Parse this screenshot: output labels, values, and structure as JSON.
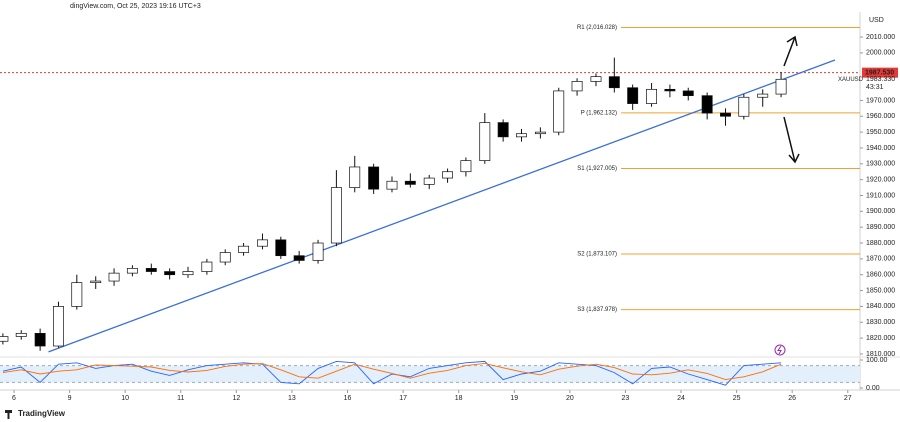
{
  "chart_data": {
    "type": "candlestick",
    "header": "dingView.com, Oct 25, 2023 19:16 UTC+3",
    "currency": "USD",
    "symbol": "XAUUSD",
    "countdown": "43:31",
    "brand": "TradingView",
    "up_color": "#ffffff",
    "down_color": "#000000",
    "x": [
      -0.2,
      0.13,
      0.47,
      0.8,
      1.13,
      1.47,
      1.8,
      2.13,
      2.47,
      2.8,
      3.13,
      3.47,
      3.8,
      4.13,
      4.47,
      4.8,
      5.13,
      5.47,
      5.8,
      6.13,
      6.47,
      6.8,
      7.13,
      7.47,
      7.8,
      8.13,
      8.47,
      8.8,
      9.13,
      9.47,
      9.8,
      10.13,
      10.47,
      10.8,
      11.13,
      11.47,
      11.8,
      12.13,
      12.47,
      12.8,
      13.13,
      13.47,
      13.8
    ],
    "open": [
      1818,
      1821,
      1823,
      1815,
      1840,
      1855,
      1856,
      1861,
      1864,
      1862,
      1860,
      1862,
      1868,
      1874,
      1878,
      1882,
      1872,
      1869,
      1880,
      1915,
      1928,
      1914,
      1919,
      1917,
      1921,
      1925,
      1932,
      1956,
      1947,
      1949,
      1950,
      1976,
      1982,
      1985,
      1978,
      1968,
      1977,
      1976,
      1973,
      1962,
      1960,
      1972,
      1974
    ],
    "high": [
      1823,
      1825,
      1826,
      1843,
      1860,
      1859,
      1864,
      1866,
      1867,
      1864,
      1865,
      1870,
      1876,
      1880,
      1886,
      1884,
      1875,
      1882,
      1926,
      1935,
      1930,
      1922,
      1924,
      1923,
      1927,
      1934,
      1962,
      1958,
      1952,
      1953,
      1978,
      1984,
      1987,
      1997,
      1980,
      1981,
      1980,
      1978,
      1975,
      1965,
      1974,
      1977,
      1988
    ],
    "low": [
      1816,
      1819,
      1812,
      1814,
      1838,
      1851,
      1853,
      1859,
      1860,
      1857,
      1858,
      1860,
      1866,
      1872,
      1876,
      1870,
      1867,
      1867,
      1878,
      1912,
      1911,
      1912,
      1915,
      1914,
      1918,
      1922,
      1930,
      1944,
      1944,
      1946,
      1948,
      1973,
      1979,
      1975,
      1964,
      1966,
      1972,
      1970,
      1958,
      1954,
      1958,
      1966,
      1972
    ],
    "close": [
      1821,
      1823,
      1815,
      1840,
      1855,
      1856,
      1861,
      1864,
      1862,
      1860,
      1862,
      1868,
      1874,
      1878,
      1882,
      1872,
      1869,
      1880,
      1915,
      1928,
      1914,
      1919,
      1917,
      1921,
      1925,
      1932,
      1956,
      1947,
      1949,
      1950,
      1976,
      1982,
      1985,
      1978,
      1968,
      1977,
      1976,
      1973,
      1962,
      1960,
      1972,
      1974,
      1983.33
    ],
    "xlim": [
      -0.252,
      15.22
    ],
    "xticks": [
      {
        "value": 0,
        "label": "6"
      },
      {
        "value": 1,
        "label": "9"
      },
      {
        "value": 2,
        "label": "10"
      },
      {
        "value": 3,
        "label": "11"
      },
      {
        "value": 4,
        "label": "12"
      },
      {
        "value": 5,
        "label": "13"
      },
      {
        "value": 6,
        "label": "16"
      },
      {
        "value": 7,
        "label": "17"
      },
      {
        "value": 8,
        "label": "18"
      },
      {
        "value": 9,
        "label": "19"
      },
      {
        "value": 10,
        "label": "20"
      },
      {
        "value": 11,
        "label": "23"
      },
      {
        "value": 12,
        "label": "24"
      },
      {
        "value": 13,
        "label": "25"
      },
      {
        "value": 14,
        "label": "26"
      },
      {
        "value": 15,
        "label": "27"
      }
    ],
    "ylim": [
      1808.7,
      2025.8
    ],
    "yticks": [
      {
        "value": 2010,
        "label": "2010.000"
      },
      {
        "value": 2000,
        "label": "2000.000"
      },
      {
        "value": 1970,
        "label": "1970.000"
      },
      {
        "value": 1960,
        "label": "1960.000"
      },
      {
        "value": 1950,
        "label": "1950.000"
      },
      {
        "value": 1940,
        "label": "1940.000"
      },
      {
        "value": 1930,
        "label": "1930.000"
      },
      {
        "value": 1920,
        "label": "1920.000"
      },
      {
        "value": 1910,
        "label": "1910.000"
      },
      {
        "value": 1900,
        "label": "1900.000"
      },
      {
        "value": 1890,
        "label": "1890.000"
      },
      {
        "value": 1880,
        "label": "1880.000"
      },
      {
        "value": 1870,
        "label": "1870.000"
      },
      {
        "value": 1860,
        "label": "1860.000"
      },
      {
        "value": 1850,
        "label": "1850.000"
      },
      {
        "value": 1840,
        "label": "1840.000"
      },
      {
        "value": 1830,
        "label": "1830.000"
      },
      {
        "value": 1820,
        "label": "1820.000"
      },
      {
        "value": 1810,
        "label": "1810.000"
      }
    ],
    "grid": false,
    "level_color": "#f0a030",
    "levels": [
      {
        "label": "R1 (2,016.028)",
        "value": 2016.028
      },
      {
        "label": "P (1,962.132)",
        "value": 1962.132
      },
      {
        "label": "S1 (1,927.005)",
        "value": 1927.005
      },
      {
        "label": "S2 (1,873.107)",
        "value": 1873.107
      },
      {
        "label": "S3 (1,837.978)",
        "value": 1837.978
      }
    ],
    "alert_line": {
      "value": 1987.53,
      "label": "1987.530",
      "color": "#e53935"
    },
    "last_price_label": "1983.330",
    "trendline": {
      "x": [
        0.62,
        14.77
      ],
      "y": [
        1811.3,
        1995.5
      ],
      "color": "#3a6fd8"
    },
    "oscillator": {
      "ylim": [
        0,
        100
      ],
      "yticks": [
        {
          "value": 100,
          "label": "100.00"
        },
        {
          "value": 0,
          "label": "0.00"
        }
      ],
      "band": [
        20,
        80
      ],
      "series": [
        {
          "color": "#2962ff",
          "values": [
            60,
            75,
            20,
            85,
            90,
            70,
            80,
            85,
            60,
            45,
            65,
            80,
            85,
            90,
            85,
            20,
            15,
            70,
            95,
            90,
            15,
            50,
            40,
            70,
            80,
            90,
            95,
            30,
            50,
            60,
            90,
            85,
            80,
            55,
            15,
            70,
            75,
            50,
            30,
            10,
            80,
            85,
            90
          ]
        },
        {
          "color": "#ff6d00",
          "values": [
            55,
            65,
            50,
            60,
            65,
            82,
            80,
            78,
            75,
            63,
            57,
            63,
            77,
            85,
            87,
            65,
            40,
            35,
            60,
            85,
            67,
            52,
            35,
            53,
            63,
            80,
            88,
            72,
            58,
            47,
            67,
            78,
            85,
            73,
            50,
            47,
            53,
            65,
            52,
            30,
            40,
            58,
            85
          ]
        }
      ]
    }
  }
}
